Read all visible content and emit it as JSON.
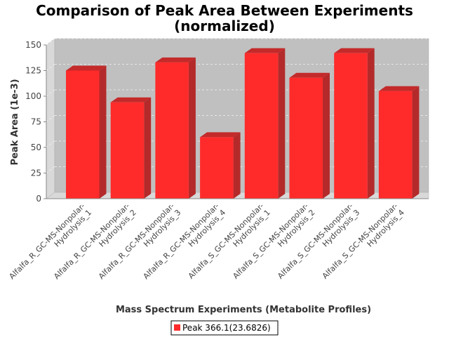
{
  "chart_data": {
    "type": "bar",
    "title_lines": [
      "Comparison of Peak Area Between Experiments",
      "(normalized)"
    ],
    "xlabel": "Mass Spectrum Experiments (Metabolite Profiles)",
    "ylabel": "Peak Area (1e-3)",
    "ylim": [
      0,
      150
    ],
    "yticks": [
      0,
      25,
      50,
      75,
      100,
      125,
      150
    ],
    "categories": [
      [
        "Alfalfa_R_GC-MS-Nonpolar-",
        "Hydrolysis_1"
      ],
      [
        "Alfalfa_R_GC-MS-Nonpolar-",
        "Hydrolysis_2"
      ],
      [
        "Alfalfa_R_GC-MS-Nonpolar-",
        "Hydrolysis_3"
      ],
      [
        "Alfalfa_R_GC-MS-Nonpolar-",
        "Hydrolysis_4"
      ],
      [
        "Alfalfa_S_GC-MS-Nonpolar-",
        "Hydrolysis_1"
      ],
      [
        "Alfalfa_S_GC-MS-Nonpolar-",
        "Hydrolysis_2"
      ],
      [
        "Alfalfa_S_GC-MS-Nonpolar-",
        "Hydrolysis_3"
      ],
      [
        "Alfalfa_S_GC-MS-Nonpolar-",
        "Hydrolysis_4"
      ]
    ],
    "series": [
      {
        "name": "Peak 366.1(23.6826)",
        "color": "#ff2b2b",
        "values": [
          125,
          94,
          133,
          60,
          142,
          118,
          142,
          105
        ]
      }
    ],
    "grid": true,
    "legend_position": "bottom"
  }
}
